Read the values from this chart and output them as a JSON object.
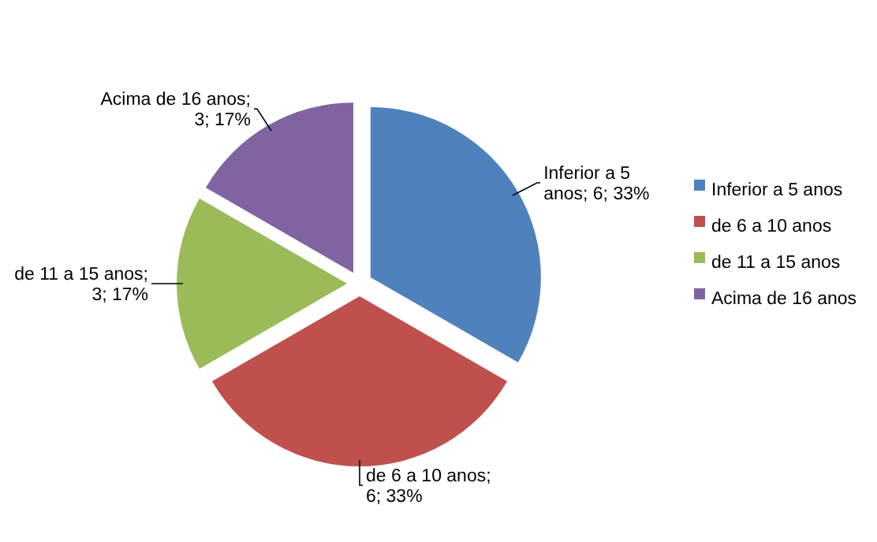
{
  "chart_data": {
    "type": "pie",
    "categories": [
      "Inferior a 5 anos",
      "de 6 a 10 anos",
      "de 11 a 15 anos",
      "Acima de 16 anos"
    ],
    "values": [
      6,
      6,
      3,
      3
    ],
    "colors": [
      "#4f81bd",
      "#c0504d",
      "#9bbb59",
      "#8064a2"
    ],
    "value_labels": [
      "Inferior a 5 anos; 6; 33%",
      "de 6 a 10 anos; 6; 33%",
      "de 11 a 15 anos; 3; 17%",
      "Acima de 16 anos; 3; 17%"
    ],
    "legend": "right"
  }
}
